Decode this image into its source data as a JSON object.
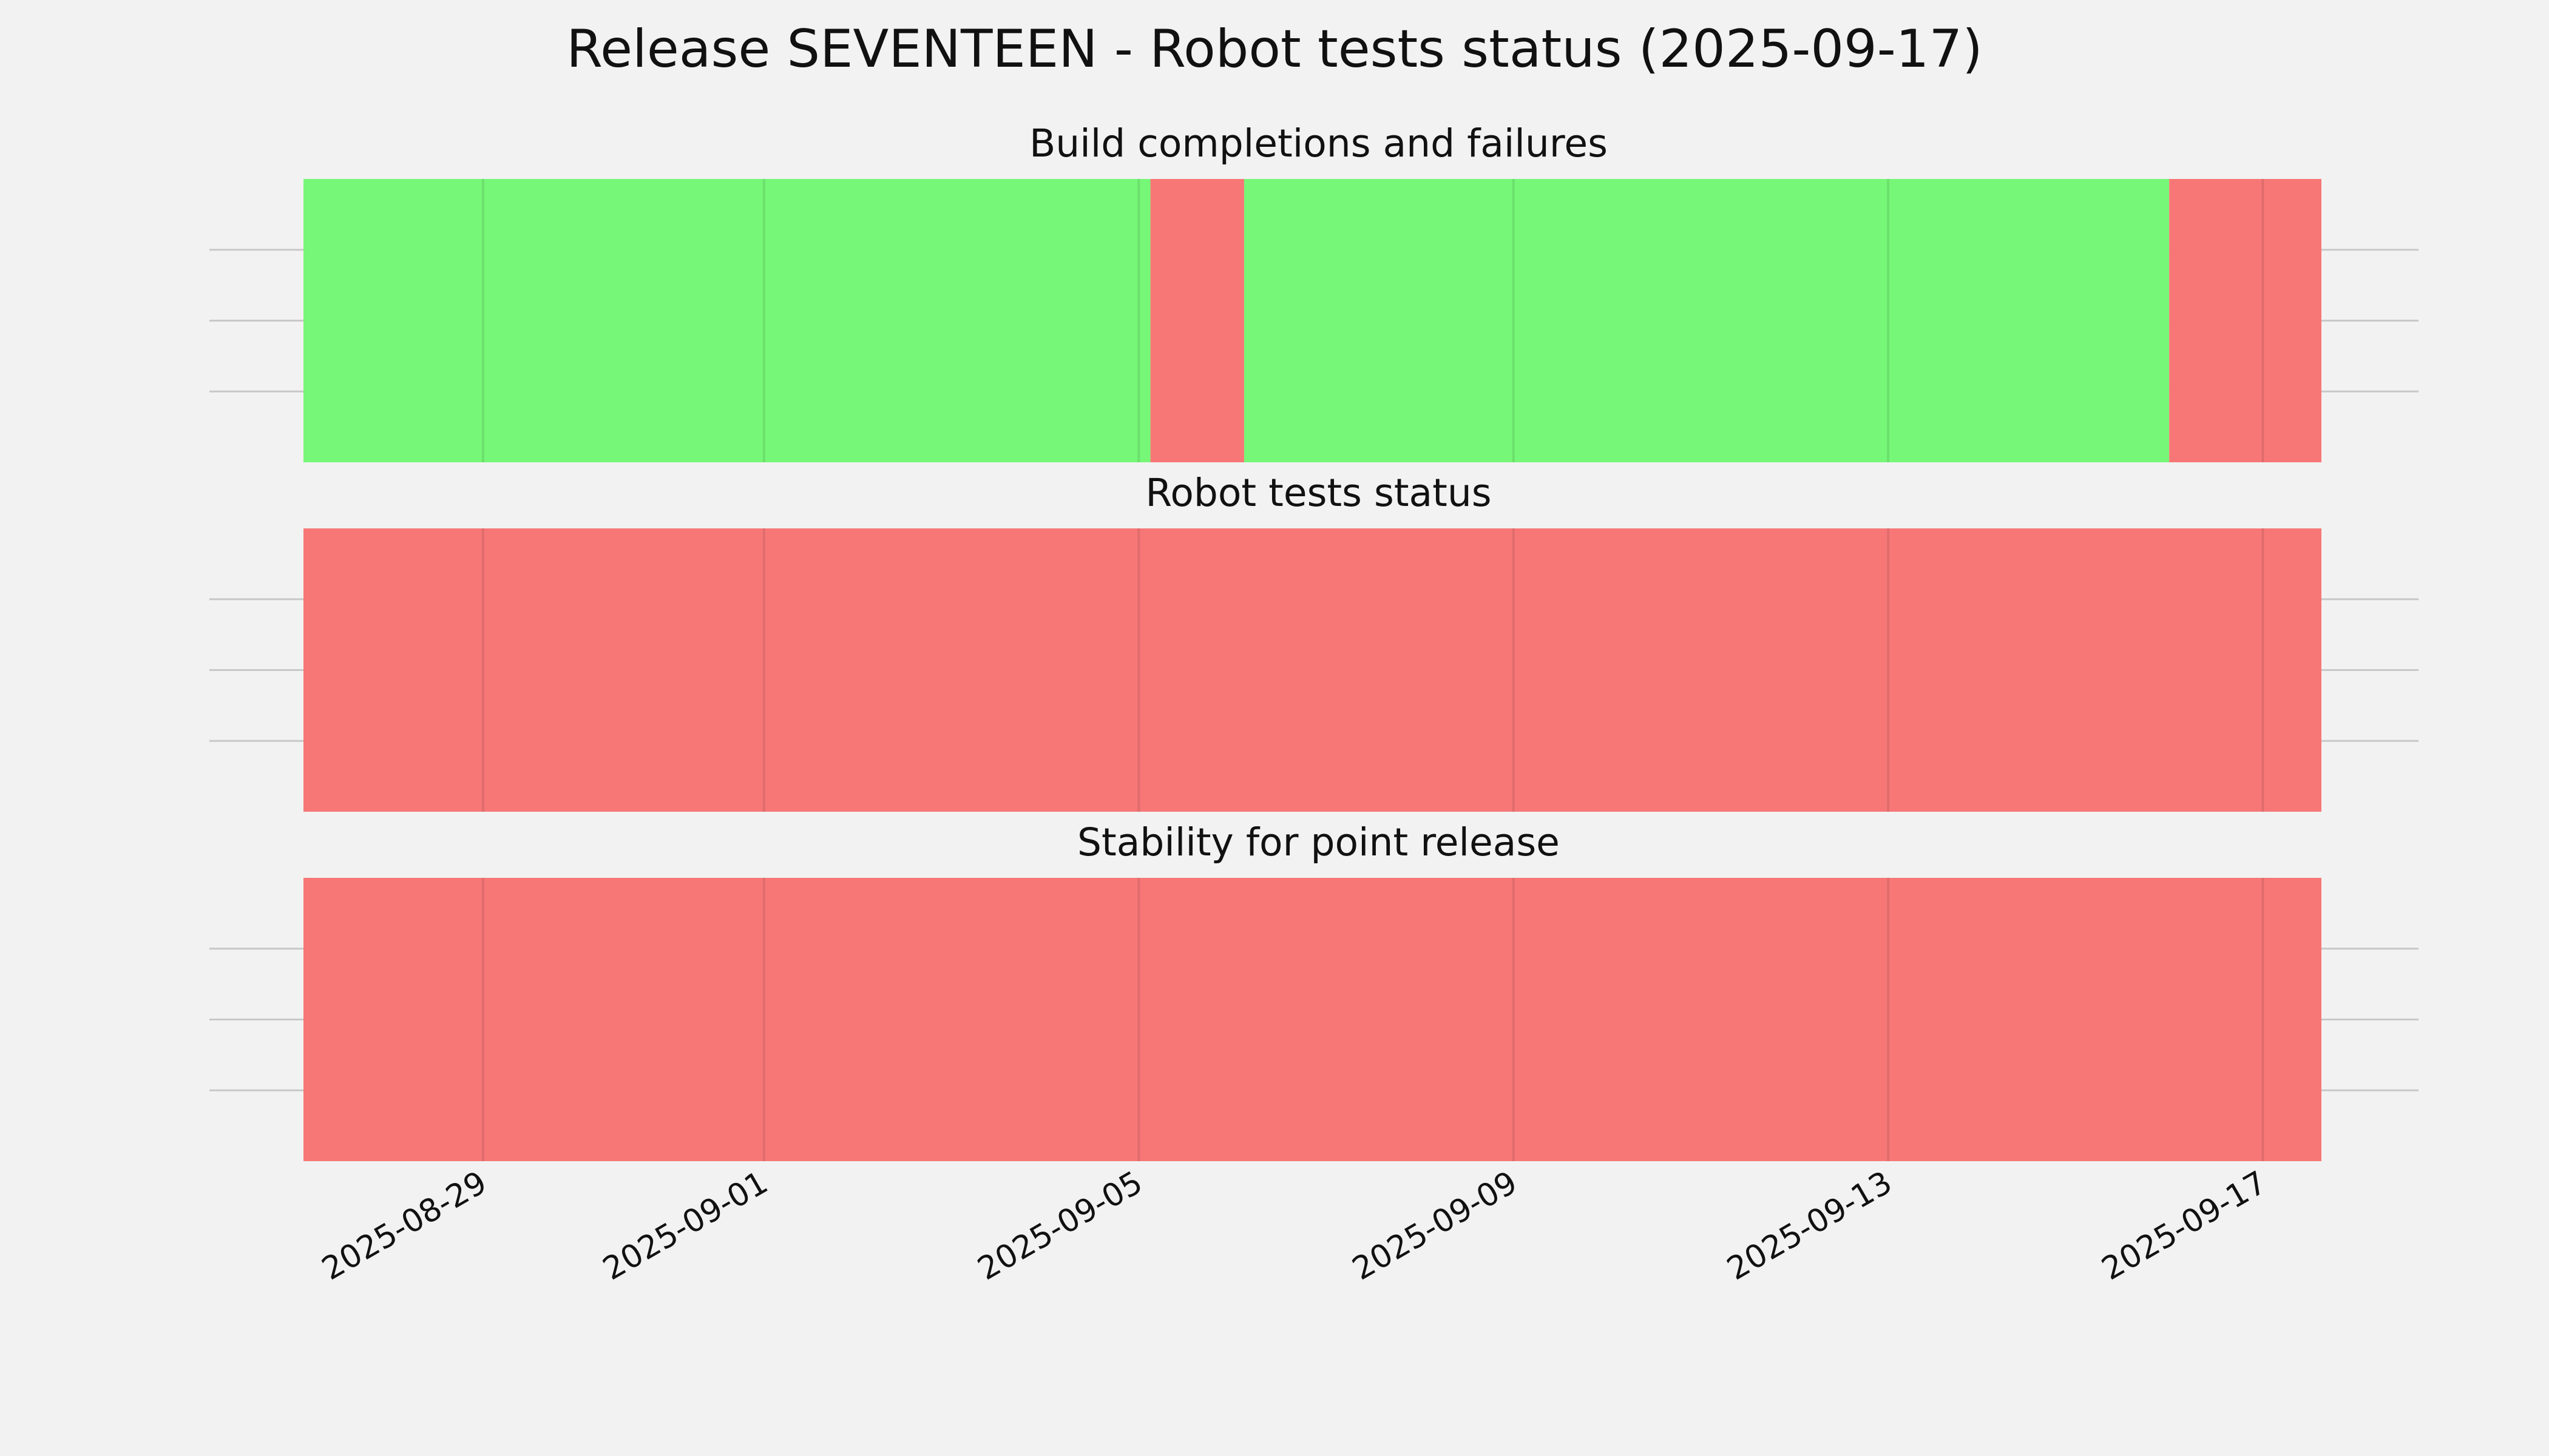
{
  "chart_data": {
    "type": "timeline",
    "title": "Release SEVENTEEN - Robot tests status (2025-09-17)",
    "x_start": "2025-08-26T00:00",
    "x_end": "2025-09-17T24:00",
    "xlim": [
      "2025-08-27T02:00",
      "2025-09-17T15:00"
    ],
    "xticks": [
      "2025-08-29",
      "2025-09-01",
      "2025-09-05",
      "2025-09-09",
      "2025-09-13",
      "2025-09-17"
    ],
    "grid": true,
    "colors": {
      "success": "#77f777",
      "failure": "#f77777",
      "background": "#f2f2f2",
      "grid": "#c8c8c8"
    },
    "panels": [
      {
        "title": "Build completions and failures",
        "segments": [
          {
            "start": "2025-08-27T02:00",
            "end": "2025-09-05T03:00",
            "status": "success"
          },
          {
            "start": "2025-09-05T03:00",
            "end": "2025-09-06T03:00",
            "status": "failure"
          },
          {
            "start": "2025-09-06T03:00",
            "end": "2025-09-16T00:00",
            "status": "success"
          },
          {
            "start": "2025-09-16T00:00",
            "end": "2025-09-17T15:00",
            "status": "failure"
          }
        ]
      },
      {
        "title": "Robot tests status",
        "segments": [
          {
            "start": "2025-08-27T02:00",
            "end": "2025-09-17T15:00",
            "status": "failure"
          }
        ]
      },
      {
        "title": "Stability for point release",
        "segments": [
          {
            "start": "2025-08-27T02:00",
            "end": "2025-09-17T15:00",
            "status": "failure"
          }
        ]
      }
    ]
  }
}
